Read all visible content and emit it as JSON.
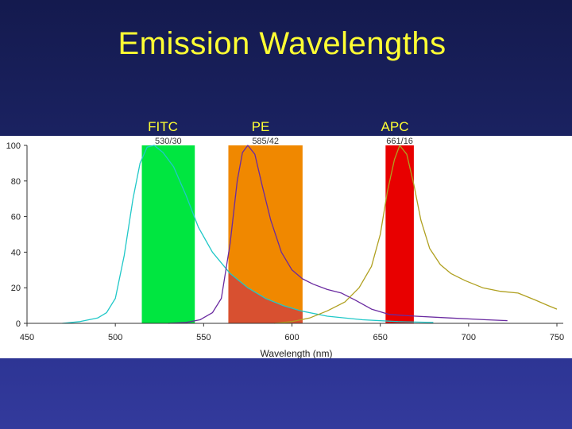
{
  "slide": {
    "title": "Emission Wavelengths",
    "filter_names": [
      "FITC",
      "PE",
      "APC"
    ]
  },
  "chart_data": {
    "type": "line",
    "title": "",
    "xlabel": "Wavelength (nm)",
    "ylabel": "",
    "xlim": [
      450,
      750
    ],
    "ylim": [
      0,
      100
    ],
    "x_ticks": [
      450,
      500,
      550,
      600,
      650,
      700,
      750
    ],
    "y_ticks": [
      0,
      20,
      40,
      60,
      80,
      100
    ],
    "grid": false,
    "filter_bands": [
      {
        "label": "530/30",
        "x0": 515,
        "x1": 545,
        "color": "#00e640"
      },
      {
        "label": "585/42",
        "x0": 564,
        "x1": 606,
        "color": "#f08800"
      },
      {
        "label": "661/16",
        "x0": 653,
        "x1": 669,
        "color": "#e80000"
      }
    ],
    "overlap_region": {
      "x0": 564,
      "x1": 606,
      "color": "#d85030"
    },
    "series": [
      {
        "color": "#20c8c8",
        "points": [
          [
            470,
            0
          ],
          [
            480,
            1
          ],
          [
            490,
            3
          ],
          [
            495,
            6
          ],
          [
            500,
            14
          ],
          [
            505,
            38
          ],
          [
            510,
            70
          ],
          [
            514,
            90
          ],
          [
            518,
            99
          ],
          [
            522,
            100
          ],
          [
            527,
            96
          ],
          [
            533,
            88
          ],
          [
            540,
            72
          ],
          [
            547,
            54
          ],
          [
            555,
            40
          ],
          [
            565,
            28
          ],
          [
            575,
            20
          ],
          [
            585,
            14
          ],
          [
            595,
            10
          ],
          [
            605,
            7
          ],
          [
            620,
            4
          ],
          [
            640,
            2
          ],
          [
            660,
            1
          ],
          [
            680,
            0.5
          ]
        ]
      },
      {
        "color": "#6a2aa0",
        "points": [
          [
            530,
            0
          ],
          [
            540,
            0.5
          ],
          [
            548,
            2
          ],
          [
            555,
            6
          ],
          [
            560,
            14
          ],
          [
            565,
            45
          ],
          [
            569,
            80
          ],
          [
            572,
            96
          ],
          [
            575,
            100
          ],
          [
            579,
            95
          ],
          [
            583,
            78
          ],
          [
            588,
            58
          ],
          [
            594,
            40
          ],
          [
            600,
            30
          ],
          [
            606,
            25
          ],
          [
            612,
            22
          ],
          [
            620,
            19
          ],
          [
            628,
            17
          ],
          [
            636,
            13
          ],
          [
            645,
            8
          ],
          [
            655,
            5
          ],
          [
            670,
            4
          ],
          [
            690,
            3
          ],
          [
            710,
            2
          ],
          [
            722,
            1.5
          ]
        ]
      },
      {
        "color": "#b0a020",
        "points": [
          [
            590,
            0
          ],
          [
            600,
            1
          ],
          [
            610,
            3
          ],
          [
            620,
            7
          ],
          [
            630,
            12
          ],
          [
            638,
            20
          ],
          [
            645,
            32
          ],
          [
            650,
            50
          ],
          [
            654,
            74
          ],
          [
            658,
            92
          ],
          [
            661,
            100
          ],
          [
            665,
            95
          ],
          [
            669,
            78
          ],
          [
            673,
            58
          ],
          [
            678,
            42
          ],
          [
            684,
            33
          ],
          [
            690,
            28
          ],
          [
            698,
            24
          ],
          [
            708,
            20
          ],
          [
            718,
            18
          ],
          [
            728,
            17
          ],
          [
            738,
            13
          ],
          [
            745,
            10
          ],
          [
            750,
            8
          ]
        ]
      }
    ]
  }
}
